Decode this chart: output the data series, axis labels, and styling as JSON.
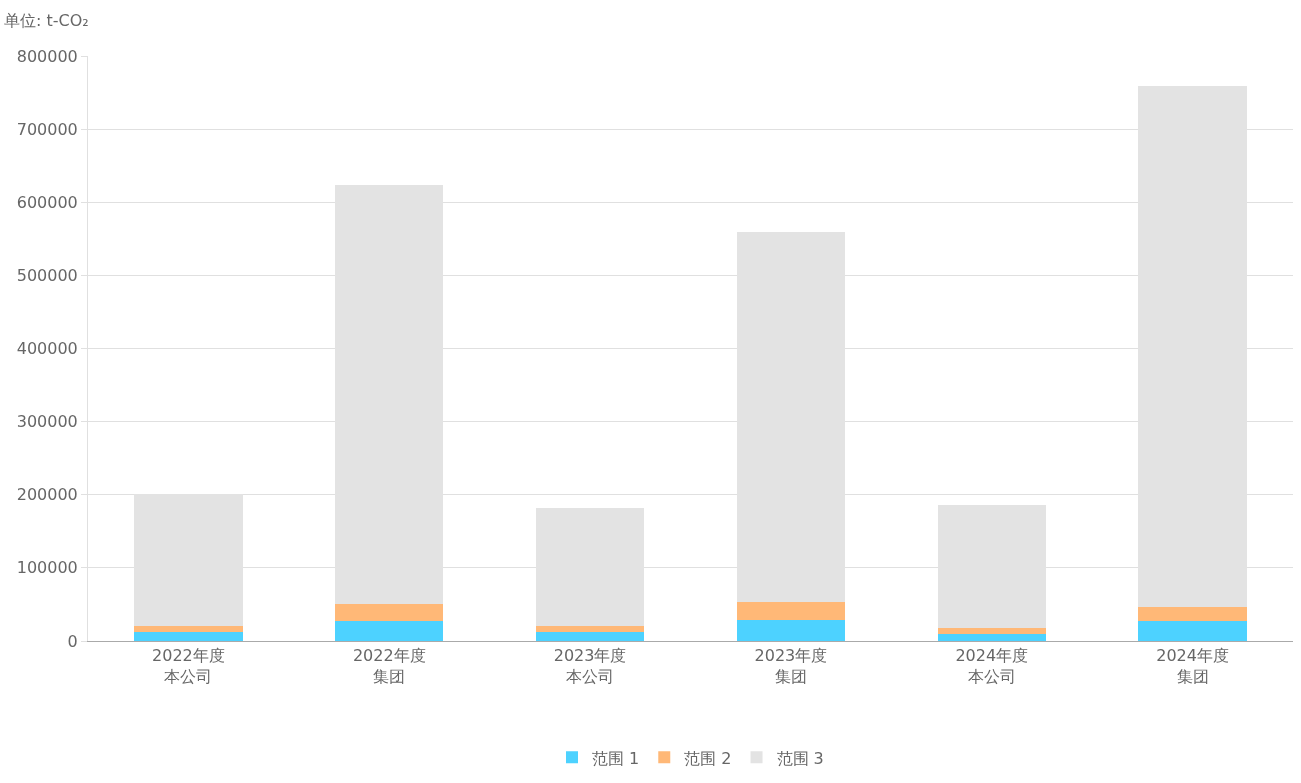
{
  "chart_data": {
    "type": "bar",
    "stacked": true,
    "ylabel": "单位: t-CO₂",
    "categories": [
      "2022年度本公司",
      "2022年度集团",
      "2023年度本公司",
      "2023年度集团",
      "2024年度本公司",
      "2024年度集团"
    ],
    "series": [
      {
        "name": "范围 1",
        "color": "#4dd2ff",
        "values": [
          12000,
          27000,
          12000,
          29000,
          10000,
          27000
        ]
      },
      {
        "name": "范围 2",
        "color": "#ffb877",
        "values": [
          9000,
          23000,
          9000,
          25000,
          8000,
          20000
        ]
      },
      {
        "name": "范围 3",
        "color": "#e3e3e3",
        "values": [
          180000,
          573000,
          161000,
          505000,
          168000,
          712000
        ]
      }
    ],
    "ylim": [
      0,
      800000
    ],
    "yticks": [
      0,
      100000,
      200000,
      300000,
      400000,
      500000,
      600000,
      700000,
      800000
    ],
    "grid": "y",
    "legend": "bottom"
  }
}
